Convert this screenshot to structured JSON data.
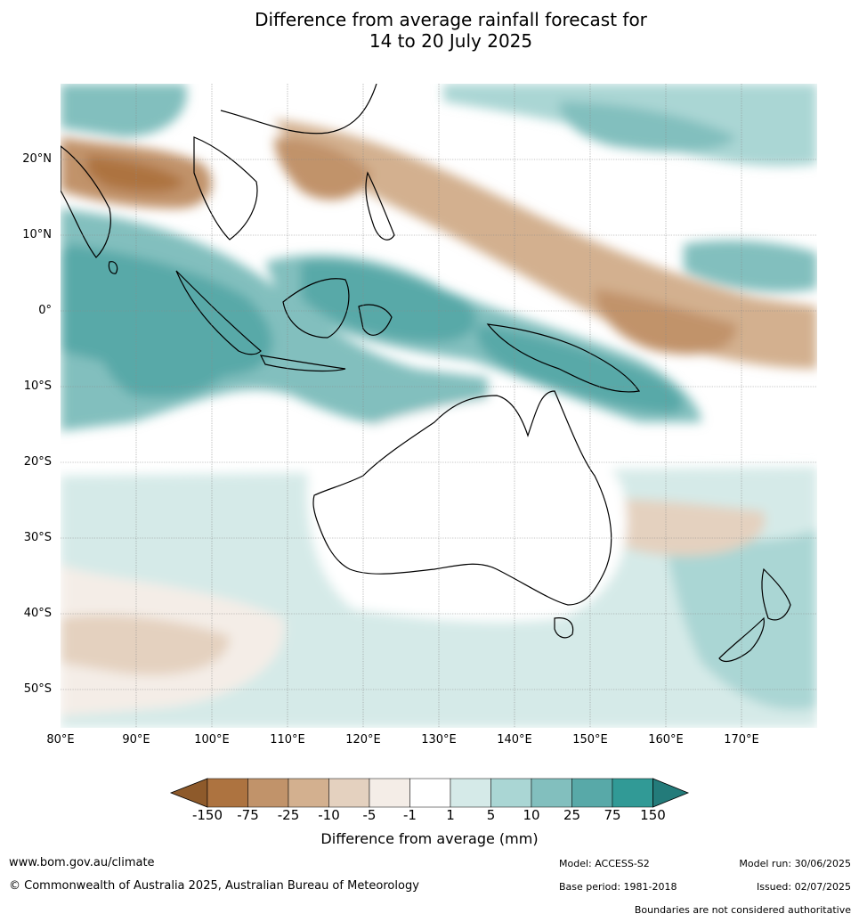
{
  "title": {
    "line1": "Difference from average rainfall forecast for",
    "line2": "14 to 20 July 2025"
  },
  "map": {
    "region": "Australia, Maritime Continent and western Pacific",
    "lon_range": [
      80,
      180
    ],
    "lat_range": [
      -55,
      30
    ],
    "lat_ticks": [
      "20°N",
      "10°N",
      "0°",
      "10°S",
      "20°S",
      "30°S",
      "40°S",
      "50°S"
    ],
    "lon_ticks": [
      "80°E",
      "90°E",
      "100°E",
      "110°E",
      "120°E",
      "130°E",
      "140°E",
      "150°E",
      "160°E",
      "170°E"
    ]
  },
  "colorbar": {
    "label": "Difference from average (mm)",
    "ticks": [
      "-150",
      "-75",
      "-25",
      "-10",
      "-5",
      "-1",
      "1",
      "5",
      "10",
      "25",
      "75",
      "150"
    ],
    "colors": [
      "#8e5a2b",
      "#ad7340",
      "#c1936a",
      "#d3b08f",
      "#e4d1bf",
      "#f4ede7",
      "#ffffff",
      "#d5eae8",
      "#aad6d4",
      "#82bfbe",
      "#58a9a8",
      "#319a96",
      "#237b7a"
    ]
  },
  "footer": {
    "website": "www.bom.gov.au/climate",
    "copyright": "© Commonwealth of Australia 2025, Australian Bureau of Meteorology",
    "model": "Model: ACCESS-S2",
    "base_period": "Base period: 1981-2018",
    "model_run": "Model run: 30/06/2025",
    "issued": "Issued: 02/07/2025",
    "disclaimer": "Boundaries are not considered authoritative"
  }
}
